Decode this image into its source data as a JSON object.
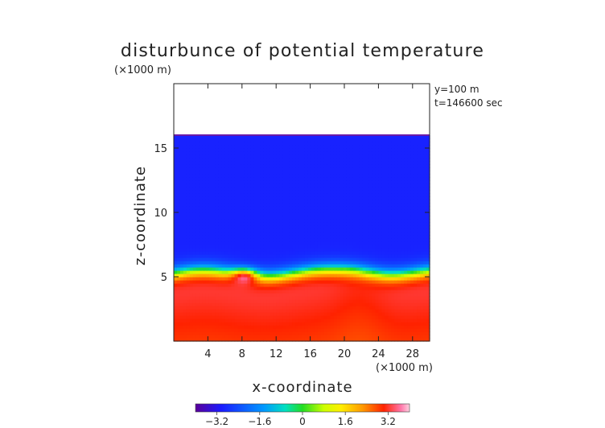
{
  "chart_data": {
    "type": "heatmap",
    "title": "disturbunce of potential temperature",
    "xlabel": "x-coordinate",
    "ylabel": "z-coordinate",
    "x_unit": "(×1000 m)",
    "y_unit": "(×1000 m)",
    "info_lines": [
      "y=100 m",
      "t=146600 sec"
    ],
    "xlim": [
      0,
      30
    ],
    "ylim": [
      0,
      20
    ],
    "x_ticks": [
      4,
      8,
      12,
      16,
      20,
      24,
      28
    ],
    "y_ticks": [
      5,
      10,
      15
    ],
    "colorbar": {
      "ticks": [
        "−3.2",
        "−1.6",
        "0",
        "1.6",
        "3.2"
      ],
      "tick_values": [
        -3.2,
        -1.6,
        0,
        1.6,
        3.2
      ],
      "range": [
        -4.0,
        4.0
      ]
    },
    "field": {
      "top_km": 16.0,
      "upper_value": -2.9,
      "surface_value": 3.4,
      "transition_km": 5.3,
      "bubble": {
        "x_km": 8.2,
        "z_km": 4.9,
        "peak_value": 3.6
      }
    }
  }
}
